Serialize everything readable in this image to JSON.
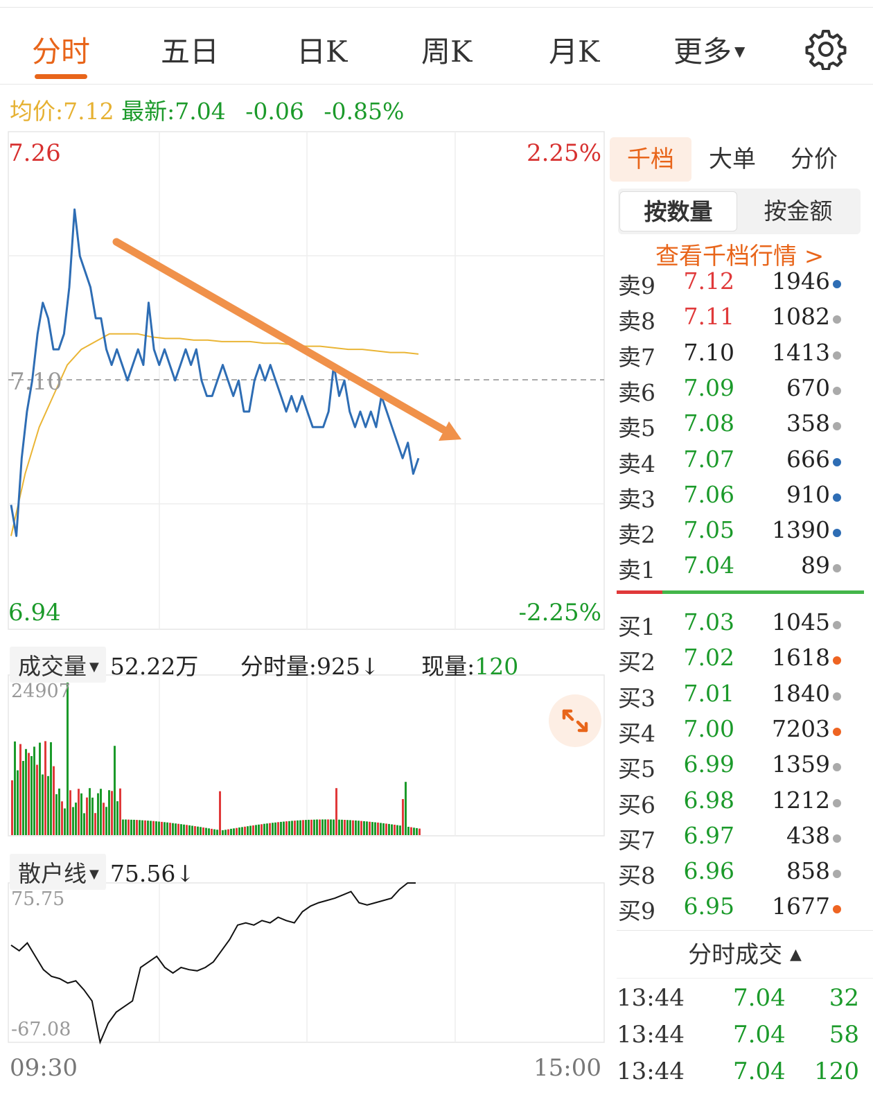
{
  "tabs": [
    {
      "label": "分时",
      "active": true
    },
    {
      "label": "五日"
    },
    {
      "label": "日K"
    },
    {
      "label": "周K"
    },
    {
      "label": "月K"
    },
    {
      "label": "更多"
    }
  ],
  "quote": {
    "avg_label": "均价:",
    "avg_value": "7.12",
    "latest_label": "最新:",
    "latest_value": "7.04",
    "change": "-0.06",
    "change_pct": "-0.85%"
  },
  "price_chart": {
    "y_max_label": "7.26",
    "y_min_label": "6.94",
    "y_mid_label": "7.10",
    "pct_max_label": "2.25%",
    "pct_min_label": "-2.25%",
    "colors": {
      "price": "#2e6db4",
      "avg": "#eab535",
      "arrow": "#f0914a",
      "up": "#e0393a",
      "down": "#1b9a2a"
    }
  },
  "volume": {
    "dropdown_label": "成交量",
    "total": "52.22万",
    "minute_volume_label": "分时量:925↓",
    "current_label": "现量:",
    "current_value": "120",
    "y_max_label": "24907"
  },
  "sanhu": {
    "dropdown_label": "散户线",
    "value": "75.56↓",
    "y_max_label": "75.75",
    "y_min_label": "-67.08"
  },
  "time_axis": {
    "start": "09:30",
    "end": "15:00"
  },
  "chart_data": [
    {
      "type": "line",
      "series": [
        {
          "name": "price",
          "values": [
            7.02,
            7.0,
            7.05,
            7.08,
            7.1,
            7.13,
            7.15,
            7.14,
            7.12,
            7.12,
            7.13,
            7.16,
            7.21,
            7.18,
            7.17,
            7.16,
            7.14,
            7.14,
            7.12,
            7.11,
            7.12,
            7.11,
            7.1,
            7.11,
            7.12,
            7.11,
            7.15,
            7.12,
            7.11,
            7.12,
            7.11,
            7.1,
            7.11,
            7.12,
            7.11,
            7.12,
            7.1,
            7.09,
            7.09,
            7.1,
            7.11,
            7.1,
            7.09,
            7.1,
            7.08,
            7.08,
            7.1,
            7.11,
            7.1,
            7.11,
            7.1,
            7.09,
            7.08,
            7.09,
            7.08,
            7.09,
            7.08,
            7.07,
            7.07,
            7.07,
            7.08,
            7.11,
            7.09,
            7.1,
            7.08,
            7.07,
            7.08,
            7.07,
            7.08,
            7.07,
            7.09,
            7.08,
            7.07,
            7.06,
            7.05,
            7.06,
            7.04,
            7.05
          ]
        },
        {
          "name": "avg",
          "values": [
            7.0,
            7.04,
            7.07,
            7.09,
            7.11,
            7.12,
            7.125,
            7.13,
            7.13,
            7.13,
            7.128,
            7.127,
            7.127,
            7.126,
            7.126,
            7.125,
            7.125,
            7.125,
            7.124,
            7.124,
            7.123,
            7.122,
            7.122,
            7.121,
            7.12,
            7.12,
            7.119,
            7.118,
            7.118,
            7.117
          ]
        }
      ],
      "ylim": [
        6.94,
        7.26
      ]
    },
    {
      "type": "bar",
      "ylim": [
        0,
        24907
      ]
    },
    {
      "type": "line",
      "ylim": [
        -67.08,
        75.75
      ]
    }
  ],
  "right_tabs": [
    {
      "label": "千档",
      "active": true
    },
    {
      "label": "大单"
    },
    {
      "label": "分价"
    }
  ],
  "segment": [
    {
      "label": "按数量",
      "active": true
    },
    {
      "label": "按金额"
    }
  ],
  "view_link": "查看千档行情 >",
  "asks": [
    {
      "label": "卖9",
      "price": "7.12",
      "qty": "1946",
      "pc": "#e0393a",
      "dot": "#2e6db4"
    },
    {
      "label": "卖8",
      "price": "7.11",
      "qty": "1082",
      "pc": "#e0393a",
      "dot": "#aaaaaa"
    },
    {
      "label": "卖7",
      "price": "7.10",
      "qty": "1413",
      "pc": "#222222",
      "dot": "#aaaaaa"
    },
    {
      "label": "卖6",
      "price": "7.09",
      "qty": "670",
      "pc": "#1b9a2a",
      "dot": "#aaaaaa"
    },
    {
      "label": "卖5",
      "price": "7.08",
      "qty": "358",
      "pc": "#1b9a2a",
      "dot": "#aaaaaa"
    },
    {
      "label": "卖4",
      "price": "7.07",
      "qty": "666",
      "pc": "#1b9a2a",
      "dot": "#2e6db4"
    },
    {
      "label": "卖3",
      "price": "7.06",
      "qty": "910",
      "pc": "#1b9a2a",
      "dot": "#2e6db4"
    },
    {
      "label": "卖2",
      "price": "7.05",
      "qty": "1390",
      "pc": "#1b9a2a",
      "dot": "#2e6db4"
    },
    {
      "label": "卖1",
      "price": "7.04",
      "qty": "89",
      "pc": "#1b9a2a",
      "dot": "#aaaaaa"
    }
  ],
  "bids": [
    {
      "label": "买1",
      "price": "7.03",
      "qty": "1045",
      "pc": "#1b9a2a",
      "dot": "#aaaaaa"
    },
    {
      "label": "买2",
      "price": "7.02",
      "qty": "1618",
      "pc": "#1b9a2a",
      "dot": "#ee6422"
    },
    {
      "label": "买3",
      "price": "7.01",
      "qty": "1840",
      "pc": "#1b9a2a",
      "dot": "#aaaaaa"
    },
    {
      "label": "买4",
      "price": "7.00",
      "qty": "7203",
      "pc": "#1b9a2a",
      "dot": "#ee6422"
    },
    {
      "label": "买5",
      "price": "6.99",
      "qty": "1359",
      "pc": "#1b9a2a",
      "dot": "#aaaaaa"
    },
    {
      "label": "买6",
      "price": "6.98",
      "qty": "1212",
      "pc": "#1b9a2a",
      "dot": "#aaaaaa"
    },
    {
      "label": "买7",
      "price": "6.97",
      "qty": "438",
      "pc": "#1b9a2a",
      "dot": "#aaaaaa"
    },
    {
      "label": "买8",
      "price": "6.96",
      "qty": "858",
      "pc": "#1b9a2a",
      "dot": "#aaaaaa"
    },
    {
      "label": "买9",
      "price": "6.95",
      "qty": "1677",
      "pc": "#1b9a2a",
      "dot": "#ee6422"
    }
  ],
  "trades_header": "分时成交",
  "trades": [
    {
      "time": "13:44",
      "price": "7.04",
      "qty": "32"
    },
    {
      "time": "13:44",
      "price": "7.04",
      "qty": "58"
    },
    {
      "time": "13:44",
      "price": "7.04",
      "qty": "120"
    }
  ]
}
